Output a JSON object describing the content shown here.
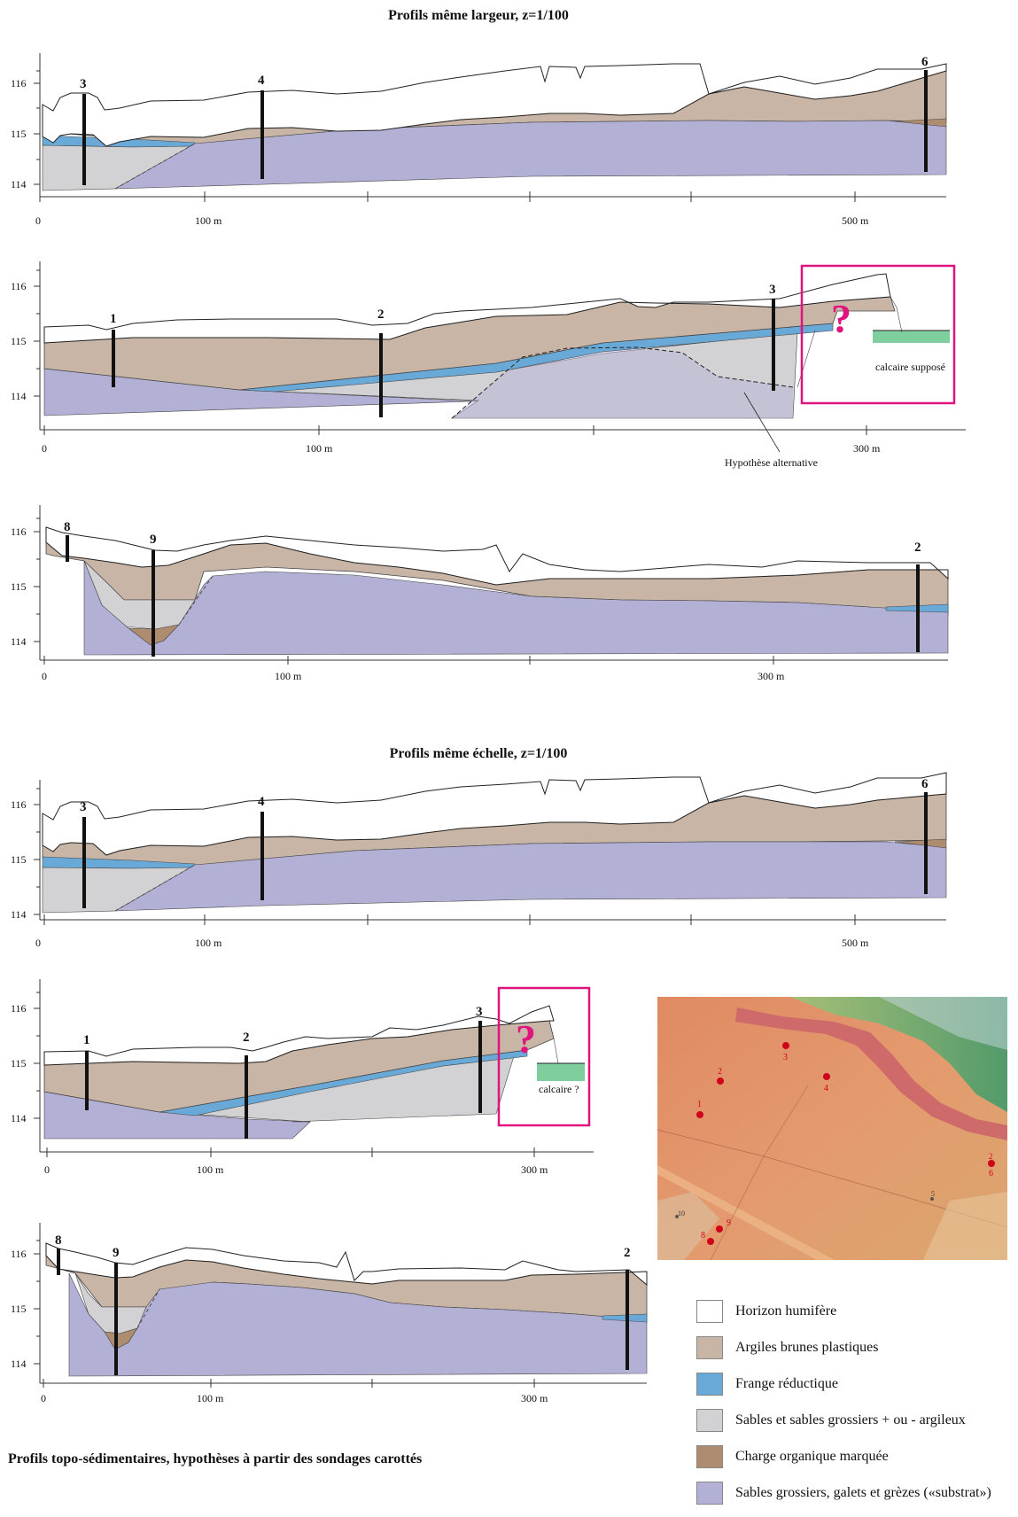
{
  "titles": {
    "largeur": "Profils même largeur, z=1/100",
    "echelle": "Profils même échelle, z=1/100"
  },
  "caption": "Profils topo-sédimentaires, hypothèses à partir des sondages carottés",
  "colors": {
    "humus": "#ffffff",
    "argile": "#c8b5a6",
    "frange": "#69a9d8",
    "sable": "#d2d2d4",
    "organique": "#ad8c6f",
    "substrat": "#b3b0d6",
    "calcaire": "#7fcf9e",
    "highlight": "#e0147e"
  },
  "legend": [
    {
      "key": "humus",
      "label": "Horizon humifère"
    },
    {
      "key": "argile",
      "label": "Argiles brunes plastiques"
    },
    {
      "key": "frange",
      "label": "Frange réductique"
    },
    {
      "key": "sable",
      "label": "Sables et sables grossiers + ou - argileux"
    },
    {
      "key": "organique",
      "label": "Charge organique marquée"
    },
    {
      "key": "substrat",
      "label": "Sables grossiers, galets et grèzes («substrat»)"
    }
  ],
  "yticks": [
    "114",
    "115",
    "116"
  ],
  "xlabels": {
    "zero": "0",
    "m100": "100 m",
    "m300": "300 m",
    "m500": "500 m"
  },
  "boreholes": {
    "b1": "1",
    "b2": "2",
    "b3": "3",
    "b4": "4",
    "b6": "6",
    "b8": "8",
    "b9": "9"
  },
  "annotations": {
    "calcaire_suppose": "calcaire supposé",
    "hypothese": "Hypothèse alternative",
    "calcaire_q": "calcaire ?",
    "question": "?"
  },
  "map": {
    "points": [
      {
        "label": "1"
      },
      {
        "label": "2"
      },
      {
        "label": "3"
      },
      {
        "label": "4"
      },
      {
        "label": "2"
      },
      {
        "label": "6"
      },
      {
        "label": "5"
      },
      {
        "label": "10"
      },
      {
        "label": "8"
      },
      {
        "label": "9"
      }
    ]
  }
}
